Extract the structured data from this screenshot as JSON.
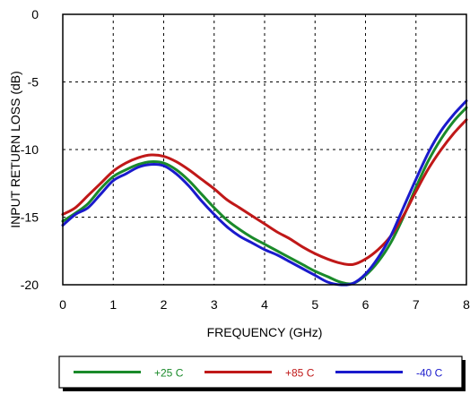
{
  "chart_data": {
    "type": "line",
    "title": "",
    "xlabel": "FREQUENCY (GHz)",
    "ylabel": "INPUT RETURN LOSS (dB)",
    "xlim": [
      0,
      8
    ],
    "ylim": [
      -20,
      0
    ],
    "x_ticks": [
      "0",
      "1",
      "2",
      "3",
      "4",
      "5",
      "6",
      "7",
      "8"
    ],
    "y_ticks": [
      "0",
      "-5",
      "-10",
      "-15",
      "-20"
    ],
    "x_tick_values": [
      0,
      1,
      2,
      3,
      4,
      5,
      6,
      7,
      8
    ],
    "y_tick_values": [
      0,
      -5,
      -10,
      -15,
      -20
    ],
    "grid": true,
    "legend_position": "bottom",
    "x": [
      0.0,
      0.25,
      0.5,
      0.75,
      1.0,
      1.25,
      1.5,
      1.75,
      2.0,
      2.25,
      2.5,
      2.75,
      3.0,
      3.25,
      3.5,
      3.75,
      4.0,
      4.25,
      4.5,
      4.75,
      5.0,
      5.25,
      5.5,
      5.75,
      6.0,
      6.25,
      6.5,
      6.75,
      7.0,
      7.25,
      7.5,
      7.75,
      8.0
    ],
    "series": [
      {
        "name": "+25 C",
        "color": "#1a8a2a",
        "values": [
          -15.3,
          -14.7,
          -14.0,
          -12.9,
          -12.0,
          -11.5,
          -11.1,
          -10.9,
          -11.0,
          -11.5,
          -12.3,
          -13.3,
          -14.3,
          -15.2,
          -15.9,
          -16.5,
          -17.0,
          -17.5,
          -18.0,
          -18.5,
          -19.0,
          -19.4,
          -19.8,
          -19.9,
          -19.3,
          -18.3,
          -16.9,
          -15.0,
          -12.8,
          -10.8,
          -9.2,
          -7.9,
          -6.9
        ]
      },
      {
        "name": "+85 C",
        "color": "#c01818",
        "values": [
          -14.8,
          -14.3,
          -13.4,
          -12.5,
          -11.6,
          -11.0,
          -10.6,
          -10.4,
          -10.5,
          -10.9,
          -11.5,
          -12.2,
          -12.9,
          -13.7,
          -14.3,
          -14.9,
          -15.5,
          -16.1,
          -16.6,
          -17.2,
          -17.7,
          -18.1,
          -18.4,
          -18.5,
          -18.1,
          -17.4,
          -16.4,
          -14.9,
          -13.1,
          -11.4,
          -10.0,
          -8.8,
          -7.8
        ]
      },
      {
        "name": "-40 C",
        "color": "#1a1acc",
        "values": [
          -15.6,
          -14.8,
          -14.3,
          -13.3,
          -12.3,
          -11.8,
          -11.3,
          -11.1,
          -11.2,
          -11.8,
          -12.7,
          -13.8,
          -14.8,
          -15.7,
          -16.4,
          -16.9,
          -17.4,
          -17.8,
          -18.3,
          -18.8,
          -19.3,
          -19.8,
          -20.0,
          -19.9,
          -19.2,
          -18.0,
          -16.4,
          -14.3,
          -12.2,
          -10.2,
          -8.6,
          -7.4,
          -6.4
        ]
      }
    ]
  }
}
